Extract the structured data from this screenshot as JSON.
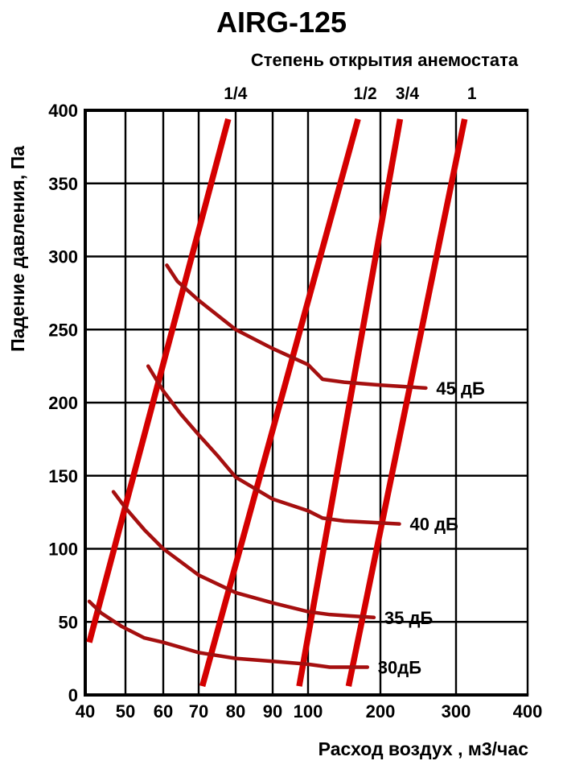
{
  "page": {
    "title": "AIRG-125"
  },
  "chart_data": {
    "type": "line",
    "title": "AIRG-125",
    "top_axis": {
      "label": "Степень открытия анемостата",
      "tick_labels": [
        "1/4",
        "1/2",
        "3/4",
        "1"
      ]
    },
    "x_axis": {
      "label": "Расход воздух , м3/час",
      "scale": "log-like",
      "tick_values": [
        40,
        50,
        60,
        70,
        80,
        90,
        100,
        200,
        300,
        400
      ]
    },
    "y_axis": {
      "label": "Падение давления, Па",
      "tick_values": [
        0,
        50,
        100,
        150,
        200,
        250,
        300,
        350,
        400
      ],
      "range": [
        0,
        400
      ]
    },
    "opening_lines": [
      {
        "label": "1/4",
        "points": [
          [
            41,
            36
          ],
          [
            78,
            394
          ]
        ]
      },
      {
        "label": "1/2",
        "points": [
          [
            71,
            6
          ],
          [
            169,
            394
          ]
        ]
      },
      {
        "label": "3/4",
        "points": [
          [
            97.5,
            6
          ],
          [
            226,
            394
          ]
        ]
      },
      {
        "label": "1",
        "points": [
          [
            156,
            6
          ],
          [
            312,
            394
          ]
        ]
      }
    ],
    "noise_curves": [
      {
        "label": "45 дБ",
        "points": [
          [
            61,
            294
          ],
          [
            64,
            283
          ],
          [
            70,
            270
          ],
          [
            80,
            250
          ],
          [
            90,
            237
          ],
          [
            100,
            226
          ],
          [
            120,
            216
          ],
          [
            150,
            214
          ],
          [
            200,
            212
          ],
          [
            230,
            211
          ],
          [
            260,
            210
          ]
        ]
      },
      {
        "label": "40 дБ",
        "points": [
          [
            56,
            225
          ],
          [
            60,
            208
          ],
          [
            65,
            192
          ],
          [
            70,
            178
          ],
          [
            75,
            164
          ],
          [
            80,
            149
          ],
          [
            90,
            134
          ],
          [
            100,
            126
          ],
          [
            120,
            121
          ],
          [
            150,
            119
          ],
          [
            190,
            118
          ],
          [
            225,
            117
          ]
        ]
      },
      {
        "label": "35 дБ",
        "points": [
          [
            47,
            139
          ],
          [
            50,
            128
          ],
          [
            55,
            113
          ],
          [
            60,
            100
          ],
          [
            70,
            82
          ],
          [
            80,
            70
          ],
          [
            90,
            63
          ],
          [
            100,
            57
          ],
          [
            130,
            55
          ],
          [
            160,
            54
          ],
          [
            191,
            53
          ]
        ]
      },
      {
        "label": "30дБ",
        "points": [
          [
            41,
            64
          ],
          [
            44,
            56
          ],
          [
            49,
            47
          ],
          [
            55,
            39
          ],
          [
            60,
            36
          ],
          [
            70,
            29
          ],
          [
            80,
            25
          ],
          [
            90,
            23
          ],
          [
            100,
            21
          ],
          [
            130,
            19
          ],
          [
            160,
            19
          ],
          [
            182,
            19
          ]
        ]
      }
    ],
    "colors": {
      "opening_line": "#d40000",
      "noise_curve": "#a50f0f",
      "grid": "#000000",
      "text": "#000000",
      "background": "#ffffff"
    }
  }
}
